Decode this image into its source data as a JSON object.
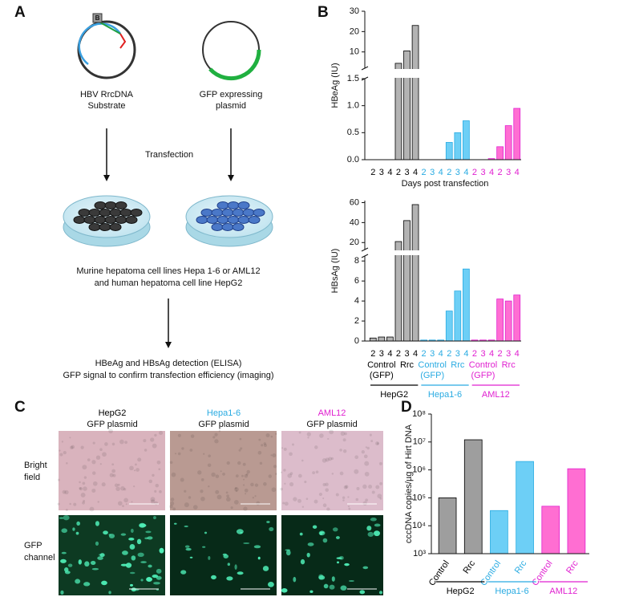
{
  "panel_labels": [
    "A",
    "B",
    "C",
    "D"
  ],
  "panel_a": {
    "plasmid_1": [
      "HBV RrcDNA",
      "Substrate"
    ],
    "plasmid_2": [
      "GFP expressing",
      "plasmid"
    ],
    "step_1": "Transfection",
    "step_2": [
      "Murine hepatoma cell lines Hepa 1-6 or AML12",
      "and human hepatoma cell line HepG2"
    ],
    "step_3": [
      "HBeAg and HBsAg detection (ELISA)",
      "GFP signal to confirm transfection efficiency (imaging)"
    ]
  },
  "panel_c": {
    "columns": [
      {
        "name": "HepG2",
        "sub": "GFP plasmid",
        "color": "#000000"
      },
      {
        "name": "Hepa1-6",
        "sub": "GFP plasmid",
        "color": "#29abe2"
      },
      {
        "name": "AML12",
        "sub": "GFP plasmid",
        "color": "#e020d0"
      }
    ],
    "rows": [
      [
        "Bright",
        "field"
      ],
      [
        "GFP",
        "channel"
      ]
    ]
  },
  "chart_data": [
    {
      "type": "bar",
      "ylabel": "HBeAg (IU)",
      "xlabel": "Days post transfection",
      "categories": [
        "2",
        "3",
        "4",
        "2",
        "3",
        "4",
        "2",
        "3",
        "4",
        "2",
        "3",
        "4",
        "2",
        "3",
        "4",
        "2",
        "3",
        "4"
      ],
      "values": [
        0,
        0,
        0,
        4.4,
        10.5,
        23,
        0,
        0,
        0,
        0.32,
        0.5,
        0.72,
        0,
        0,
        0.02,
        0.24,
        0.63,
        0.95
      ],
      "ylim": [
        0,
        30
      ],
      "ybreak": [
        1.5,
        2
      ],
      "yticks": [
        {
          "value": 0,
          "label": "0.0"
        },
        {
          "value": 0.5,
          "label": "0.5"
        },
        {
          "value": 1,
          "label": "1.0"
        },
        {
          "value": 1.5,
          "label": "1.5"
        },
        10,
        20,
        30
      ],
      "group_colors": [
        "#000000",
        "#29abe2",
        "#e020d0"
      ],
      "group_fills": [
        "#b3b3b3",
        "#6dcff6",
        "#ff6ed2"
      ]
    },
    {
      "type": "bar",
      "ylabel": "HBsAg (IU)",
      "categories": [
        "2",
        "3",
        "4",
        "2",
        "3",
        "4",
        "2",
        "3",
        "4",
        "2",
        "3",
        "4",
        "2",
        "3",
        "4",
        "2",
        "3",
        "4"
      ],
      "values": [
        0.3,
        0.4,
        0.4,
        21,
        42,
        58,
        0.1,
        0.1,
        0.1,
        3,
        5,
        7.2,
        0.1,
        0.1,
        0.1,
        4.2,
        4,
        4.6
      ],
      "ylim": [
        0,
        62
      ],
      "ybreak": [
        8.5,
        13
      ],
      "yticks": [
        0,
        2,
        4,
        6,
        8,
        20,
        40,
        60
      ],
      "group_colors": [
        "#000000",
        "#29abe2",
        "#e020d0"
      ],
      "group_fills": [
        "#b3b3b3",
        "#6dcff6",
        "#ff6ed2"
      ],
      "groups": [
        {
          "name": "HepG2",
          "subgroups": [
            {
              "lines": [
                "Control",
                "(GFP)"
              ]
            },
            {
              "lines": [
                "Rrc"
              ]
            }
          ]
        },
        {
          "name": "Hepa1-6",
          "subgroups": [
            {
              "lines": [
                "Control",
                "(GFP)"
              ]
            },
            {
              "lines": [
                "Rrc"
              ]
            }
          ]
        },
        {
          "name": "AML12",
          "subgroups": [
            {
              "lines": [
                "Control",
                "(GFP)"
              ]
            },
            {
              "lines": [
                "Rrc"
              ]
            }
          ]
        }
      ]
    },
    {
      "type": "bar",
      "ylabel": "cccDNA copies/µg of Hirt DNA",
      "log": true,
      "categories": [
        "Control",
        "Rrc",
        "Control",
        "Rrc",
        "Control",
        "Rrc"
      ],
      "values": [
        100000,
        12000000,
        35000,
        2000000,
        50000,
        1100000
      ],
      "ylim": [
        1000,
        100000000
      ],
      "yticks": [
        {
          "value": 1000,
          "label": "10³"
        },
        {
          "value": 10000,
          "label": "10⁴"
        },
        {
          "value": 100000,
          "label": "10⁵"
        },
        {
          "value": 1000000,
          "label": "10⁶"
        },
        {
          "value": 10000000,
          "label": "10⁷"
        },
        {
          "value": 100000000,
          "label": "10⁸"
        }
      ],
      "group_colors": [
        "#000000",
        "#29abe2",
        "#e020d0"
      ],
      "group_fills": [
        "#9e9e9e",
        "#6dcff6",
        "#ff6ed2"
      ],
      "groups": [
        {
          "name": "HepG2"
        },
        {
          "name": "Hepa1-6"
        },
        {
          "name": "AML12"
        }
      ]
    }
  ]
}
